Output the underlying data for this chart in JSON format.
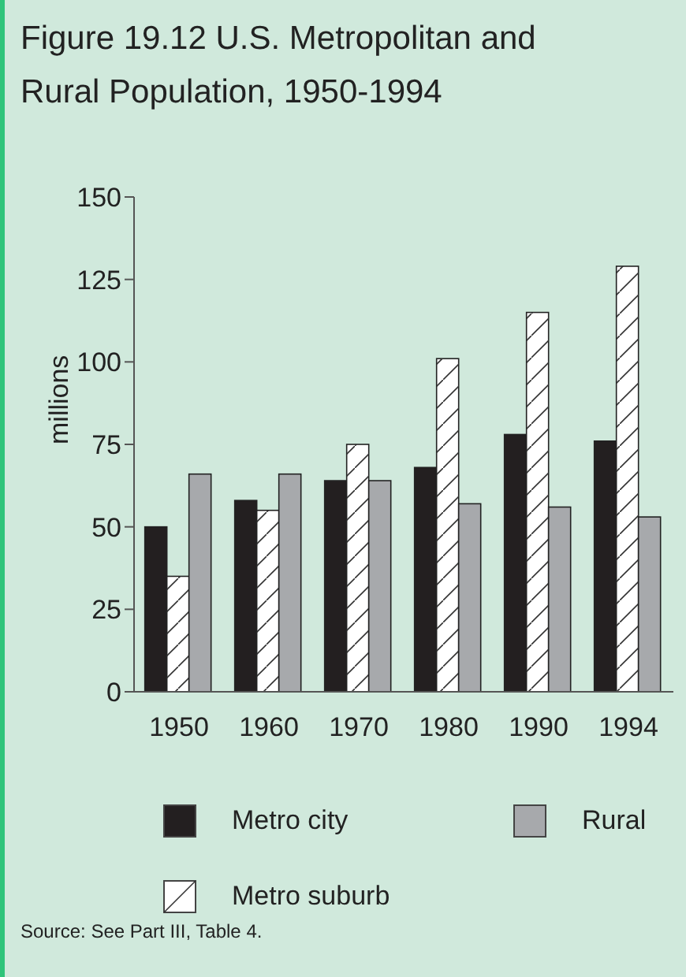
{
  "chart_data": {
    "type": "bar",
    "title": "Figure 19.12  U.S. Metropolitan and Rural Population, 1950-1994",
    "ylabel": "millions",
    "categories": [
      "1950",
      "1960",
      "1970",
      "1980",
      "1990",
      "1994"
    ],
    "series": [
      {
        "name": "Metro city",
        "color": "#231f20",
        "values": [
          50,
          58,
          64,
          68,
          78,
          76
        ]
      },
      {
        "name": "Metro suburb",
        "color": "#ffffff",
        "values": [
          35,
          55,
          75,
          101,
          115,
          129
        ]
      },
      {
        "name": "Rural",
        "color": "#a7a9ac",
        "values": [
          66,
          66,
          64,
          57,
          56,
          53
        ]
      }
    ],
    "ylim": [
      0,
      150
    ],
    "yticks": [
      0,
      25,
      50,
      75,
      100,
      125,
      150
    ],
    "grid": false,
    "legend": "bottom",
    "annotations": [
      "Source: See Part III, Table 4."
    ]
  }
}
